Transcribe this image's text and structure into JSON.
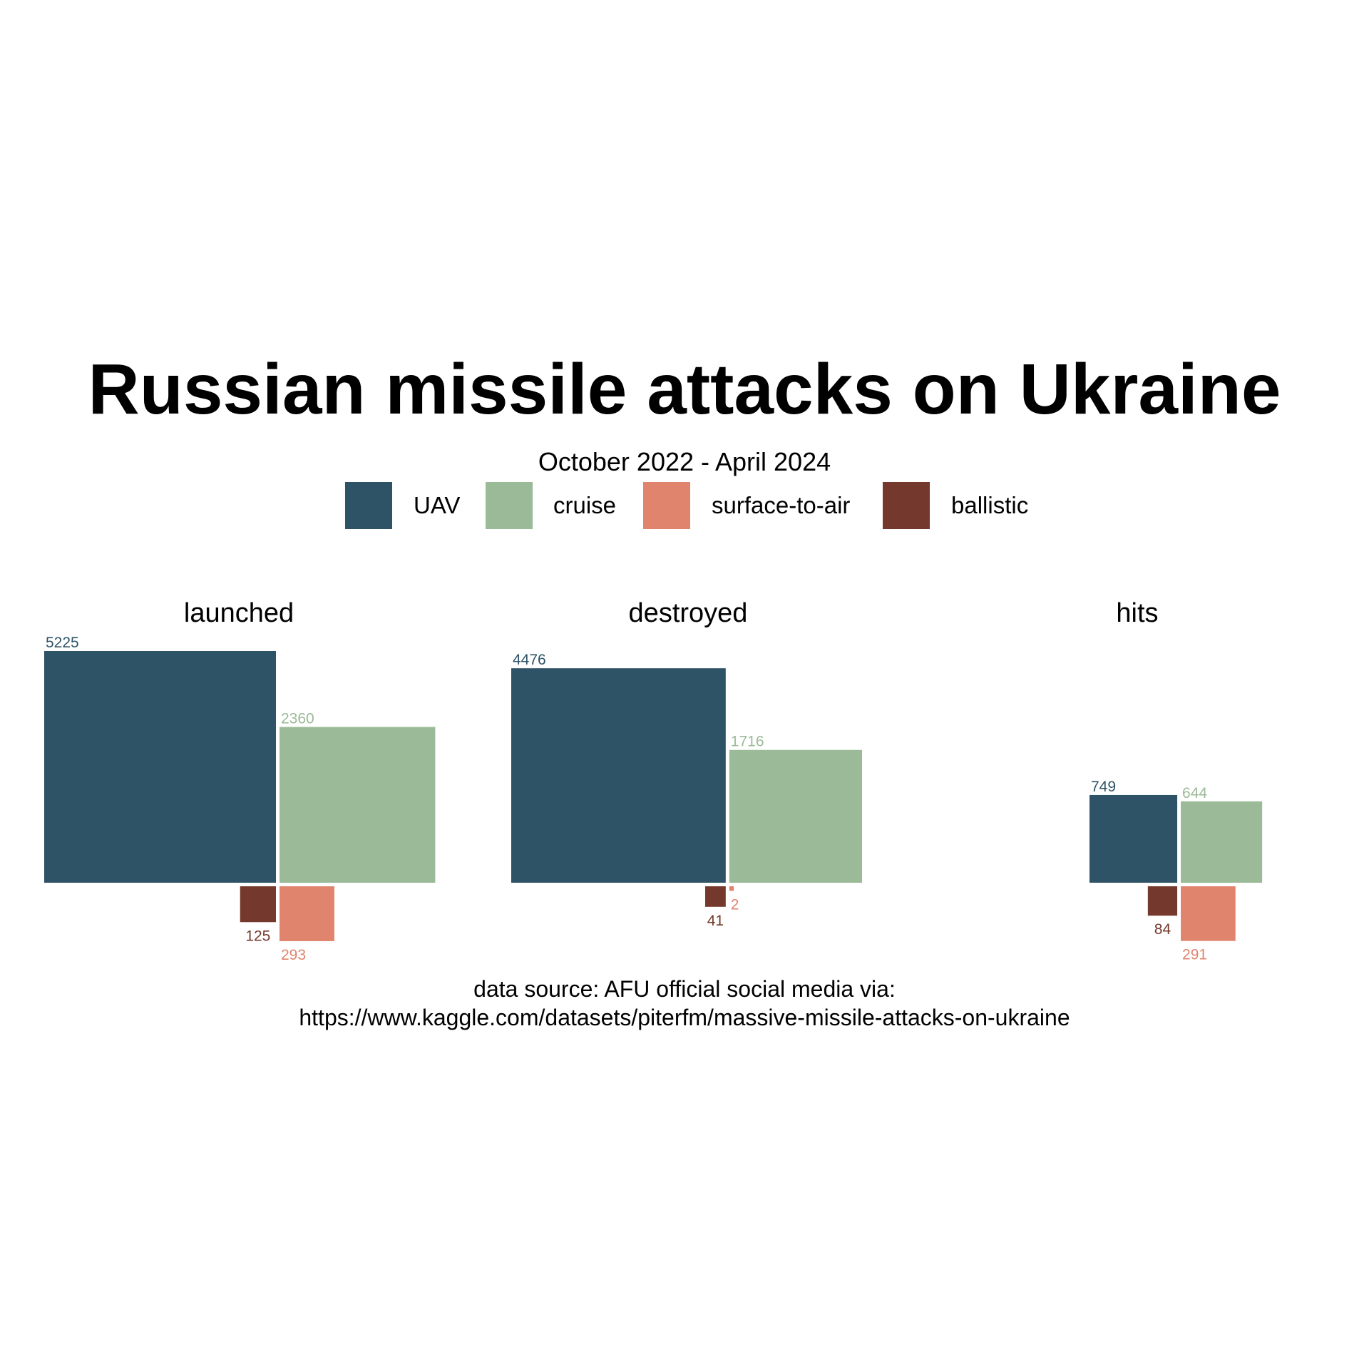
{
  "chart_data": {
    "type": "square_area",
    "title": "Russian missile attacks on Ukraine",
    "subtitle": "October 2022 - April 2024",
    "legend": {
      "position": "top",
      "entries": [
        {
          "name": "UAV",
          "color": "#2e5366"
        },
        {
          "name": "cruise",
          "color": "#9bba98"
        },
        {
          "name": "surface-to-air",
          "color": "#e0846e"
        },
        {
          "name": "ballistic",
          "color": "#74392c"
        }
      ]
    },
    "categories": [
      "UAV",
      "cruise",
      "surface-to-air",
      "ballistic"
    ],
    "facets": [
      {
        "name": "launched",
        "values": {
          "UAV": 5225,
          "cruise": 2360,
          "surface-to-air": 293,
          "ballistic": 125
        }
      },
      {
        "name": "destroyed",
        "values": {
          "UAV": 4476,
          "cruise": 1716,
          "surface-to-air": 2,
          "ballistic": 41
        }
      },
      {
        "name": "hits",
        "values": {
          "UAV": 749,
          "cruise": 644,
          "surface-to-air": 291,
          "ballistic": 84
        }
      }
    ],
    "caption_lines": [
      "data source: AFU official social media via:",
      "https://www.kaggle.com/datasets/piterfm/massive-missile-attacks-on-ukraine"
    ]
  }
}
